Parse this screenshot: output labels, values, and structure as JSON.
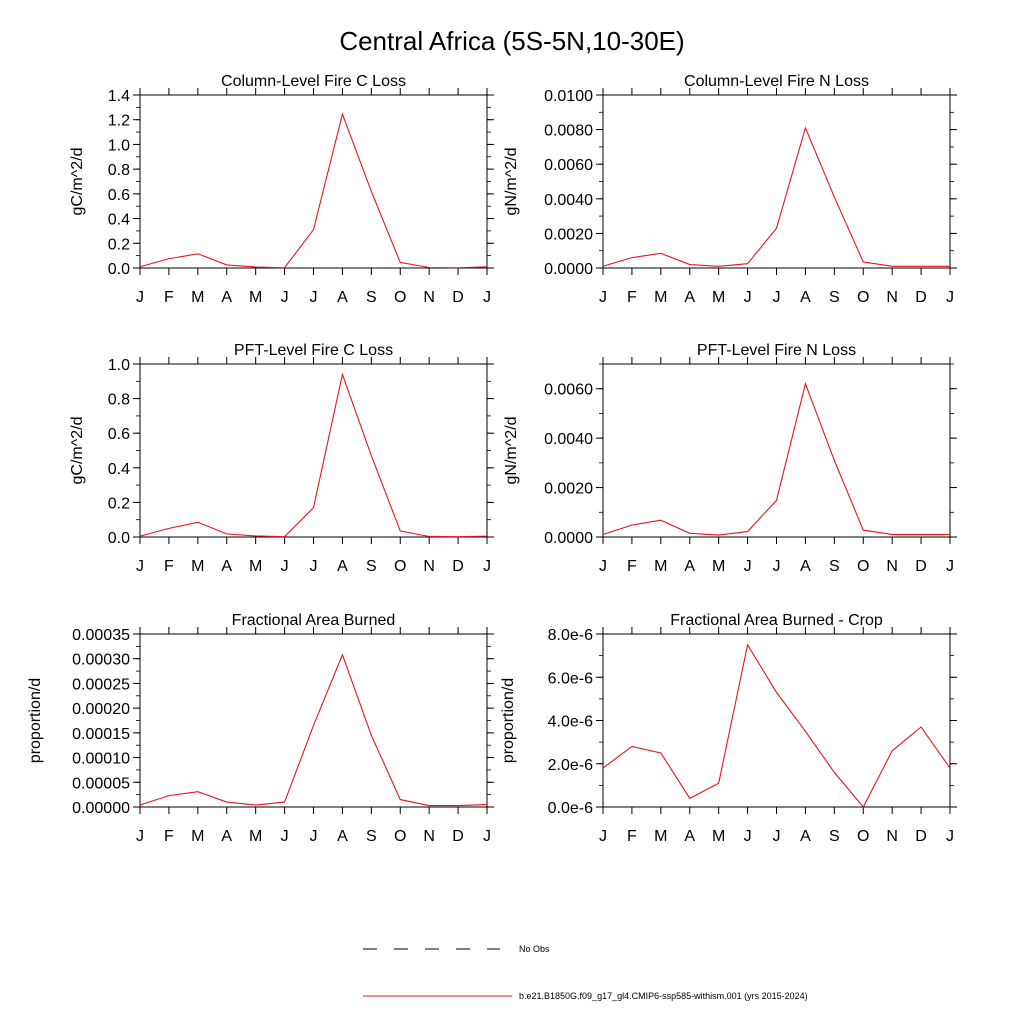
{
  "title": "Central Africa (5S-5N,10-30E)",
  "legend": {
    "no_obs_label": "No Obs",
    "model_label": "b.e21.B1850G.f09_g17_gl4.CMIP6-ssp585-withism.001 (yrs 2015-2024)",
    "model_color": "#e8141e",
    "no_obs_color": "#000000"
  },
  "chart_data": [
    {
      "type": "line",
      "title": "Column-Level Fire C Loss",
      "ylabel": "gC/m^2/d",
      "categories": [
        "J",
        "F",
        "M",
        "A",
        "M",
        "J",
        "J",
        "A",
        "S",
        "O",
        "N",
        "D",
        "J"
      ],
      "ylim": [
        0,
        1.4
      ],
      "yticks": [
        0,
        0.2,
        0.4,
        0.6,
        0.8,
        1.0,
        1.2,
        1.4
      ],
      "ytick_labels": [
        "0.0",
        "0.2",
        "0.4",
        "0.6",
        "0.8",
        "1.0",
        "1.2",
        "1.4"
      ],
      "yminor": 0.1,
      "series": [
        {
          "values": [
            0.01,
            0.075,
            0.115,
            0.025,
            0.008,
            0.002,
            0.31,
            1.245,
            0.62,
            0.045,
            0.004,
            0.002,
            0.01
          ]
        }
      ]
    },
    {
      "type": "line",
      "title": "Column-Level Fire N Loss",
      "ylabel": "gN/m^2/d",
      "categories": [
        "J",
        "F",
        "M",
        "A",
        "M",
        "J",
        "J",
        "A",
        "S",
        "O",
        "N",
        "D",
        "J"
      ],
      "ylim": [
        0,
        0.01
      ],
      "yticks": [
        0,
        0.002,
        0.004,
        0.006,
        0.008,
        0.01
      ],
      "ytick_labels": [
        "0.0000",
        "0.0020",
        "0.0040",
        "0.0060",
        "0.0080",
        "0.0100"
      ],
      "yminor": 0.001,
      "series": [
        {
          "values": [
            0.0001,
            0.0006,
            0.00085,
            0.0002,
            0.0001,
            0.00025,
            0.0023,
            0.0081,
            0.0041,
            0.00035,
            0.0001,
            0.0001,
            0.0001
          ]
        }
      ]
    },
    {
      "type": "line",
      "title": "PFT-Level Fire C Loss",
      "ylabel": "gC/m^2/d",
      "categories": [
        "J",
        "F",
        "M",
        "A",
        "M",
        "J",
        "J",
        "A",
        "S",
        "O",
        "N",
        "D",
        "J"
      ],
      "ylim": [
        0,
        1.0
      ],
      "yticks": [
        0,
        0.2,
        0.4,
        0.6,
        0.8,
        1.0
      ],
      "ytick_labels": [
        "0.0",
        "0.2",
        "0.4",
        "0.6",
        "0.8",
        "1.0"
      ],
      "yminor": 0.1,
      "series": [
        {
          "values": [
            0.005,
            0.05,
            0.085,
            0.018,
            0.006,
            0.002,
            0.17,
            0.94,
            0.47,
            0.035,
            0.003,
            0.002,
            0.005
          ]
        }
      ]
    },
    {
      "type": "line",
      "title": "PFT-Level Fire N Loss",
      "ylabel": "gN/m^2/d",
      "categories": [
        "J",
        "F",
        "M",
        "A",
        "M",
        "J",
        "J",
        "A",
        "S",
        "O",
        "N",
        "D",
        "J"
      ],
      "ylim": [
        0,
        0.007
      ],
      "yticks": [
        0,
        0.002,
        0.004,
        0.006
      ],
      "ytick_labels": [
        "0.0000",
        "0.0020",
        "0.0040",
        "0.0060"
      ],
      "yminor": 0.001,
      "series": [
        {
          "values": [
            0.0001,
            0.00048,
            0.00068,
            0.00015,
            8e-05,
            0.00022,
            0.00148,
            0.0062,
            0.0031,
            0.00028,
            0.0001,
            0.0001,
            0.0001
          ]
        }
      ]
    },
    {
      "type": "line",
      "title": "Fractional Area Burned",
      "ylabel": "proportion/d",
      "categories": [
        "J",
        "F",
        "M",
        "A",
        "M",
        "J",
        "J",
        "A",
        "S",
        "O",
        "N",
        "D",
        "J"
      ],
      "ylim": [
        0,
        0.00035
      ],
      "yticks": [
        0,
        5e-05,
        0.0001,
        0.00015,
        0.0002,
        0.00025,
        0.0003,
        0.00035
      ],
      "ytick_labels": [
        "0.00000",
        "0.00005",
        "0.00010",
        "0.00015",
        "0.00020",
        "0.00025",
        "0.00030",
        "0.00035"
      ],
      "yminor": 2.5e-05,
      "series": [
        {
          "values": [
            4e-06,
            2.3e-05,
            3.1e-05,
            1e-05,
            4e-06,
            1e-05,
            0.000165,
            0.000308,
            0.000145,
            1.5e-05,
            3e-06,
            3e-06,
            5e-06
          ]
        }
      ]
    },
    {
      "type": "line",
      "title": "Fractional Area Burned - Crop",
      "ylabel": "proportion/d",
      "categories": [
        "J",
        "F",
        "M",
        "A",
        "M",
        "J",
        "J",
        "A",
        "S",
        "O",
        "N",
        "D",
        "J"
      ],
      "ylim": [
        0,
        8e-06
      ],
      "yticks": [
        0,
        2e-06,
        4e-06,
        6e-06,
        8e-06
      ],
      "ytick_labels": [
        "0.0e-6",
        "2.0e-6",
        "4.0e-6",
        "6.0e-6",
        "8.0e-6"
      ],
      "yminor": 1e-06,
      "series": [
        {
          "values": [
            1.8e-06,
            2.8e-06,
            2.5e-06,
            4e-07,
            1.1e-06,
            7.5e-06,
            5.3e-06,
            3.5e-06,
            1.6e-06,
            0.0,
            2.6e-06,
            3.7e-06,
            1.8e-06
          ]
        }
      ]
    }
  ]
}
